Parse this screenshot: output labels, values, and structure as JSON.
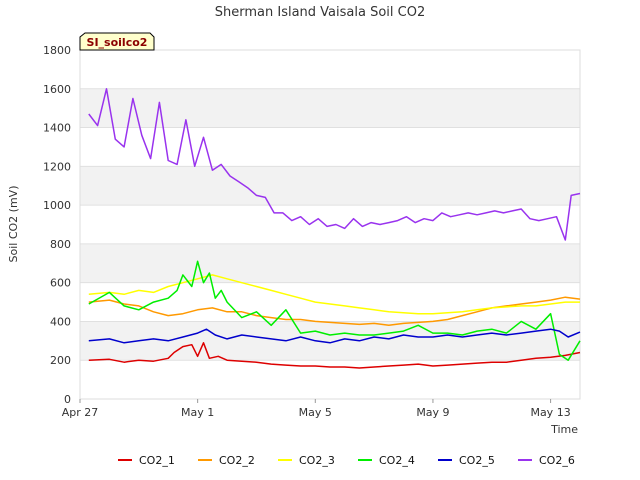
{
  "chart_data": {
    "type": "line",
    "title": "Sherman Island Vaisala Soil CO2",
    "xlabel": "Time",
    "ylabel": "Soil CO2 (mV)",
    "tag": "SI_soilco2",
    "ylim": [
      0,
      1800
    ],
    "xlim": [
      0,
      17
    ],
    "yticks": [
      0,
      200,
      400,
      600,
      800,
      1000,
      1200,
      1400,
      1600,
      1800
    ],
    "xticks": [
      {
        "pos": 0,
        "label": "Apr 27"
      },
      {
        "pos": 4,
        "label": "May 1"
      },
      {
        "pos": 8,
        "label": "May 5"
      },
      {
        "pos": 12,
        "label": "May 9"
      },
      {
        "pos": 16,
        "label": "May 13"
      }
    ],
    "grid": "horizontal-bands",
    "legend_position": "bottom",
    "series": [
      {
        "name": "CO2_1",
        "color": "#dd0000",
        "x": [
          0.3,
          1,
          1.5,
          2,
          2.5,
          3,
          3.2,
          3.5,
          3.8,
          4,
          4.2,
          4.4,
          4.7,
          5,
          5.5,
          6,
          6.5,
          7,
          7.5,
          8,
          8.5,
          9,
          9.5,
          10,
          10.5,
          11,
          11.5,
          12,
          12.5,
          13,
          13.5,
          14,
          14.5,
          15,
          15.5,
          16,
          16.5,
          17
        ],
        "y": [
          200,
          205,
          190,
          200,
          195,
          210,
          240,
          270,
          280,
          220,
          290,
          210,
          220,
          200,
          195,
          190,
          180,
          175,
          170,
          170,
          165,
          165,
          160,
          165,
          170,
          175,
          180,
          170,
          175,
          180,
          185,
          190,
          190,
          200,
          210,
          215,
          225,
          240
        ]
      },
      {
        "name": "CO2_2",
        "color": "#ff9900",
        "x": [
          0.3,
          1,
          1.5,
          2,
          2.5,
          3,
          3.5,
          4,
          4.5,
          5,
          5.5,
          6,
          6.5,
          7,
          7.5,
          8,
          8.5,
          9,
          9.5,
          10,
          10.5,
          11,
          11.5,
          12,
          12.5,
          13,
          13.5,
          14,
          14.5,
          15,
          15.5,
          16,
          16.5,
          17
        ],
        "y": [
          500,
          510,
          490,
          480,
          450,
          430,
          440,
          460,
          470,
          450,
          450,
          430,
          420,
          410,
          410,
          400,
          395,
          390,
          385,
          390,
          380,
          390,
          395,
          400,
          410,
          430,
          450,
          470,
          480,
          490,
          500,
          510,
          525,
          515
        ]
      },
      {
        "name": "CO2_3",
        "color": "#ffff00",
        "x": [
          0.3,
          1,
          1.5,
          2,
          2.5,
          3,
          3.5,
          4,
          4.5,
          5,
          5.5,
          6,
          6.5,
          7,
          7.5,
          8,
          8.5,
          9,
          9.5,
          10,
          10.5,
          11,
          11.5,
          12,
          12.5,
          13,
          13.5,
          14,
          14.5,
          15,
          15.5,
          16,
          16.5,
          17
        ],
        "y": [
          540,
          550,
          540,
          560,
          550,
          580,
          600,
          620,
          640,
          620,
          600,
          580,
          560,
          540,
          520,
          500,
          490,
          480,
          470,
          460,
          450,
          445,
          440,
          440,
          445,
          450,
          460,
          470,
          475,
          480,
          480,
          490,
          500,
          500
        ]
      },
      {
        "name": "CO2_4",
        "color": "#00ee00",
        "x": [
          0.3,
          1,
          1.5,
          2,
          2.5,
          3,
          3.3,
          3.5,
          3.8,
          4,
          4.2,
          4.4,
          4.6,
          4.8,
          5,
          5.5,
          6,
          6.5,
          7,
          7.5,
          8,
          8.5,
          9,
          9.5,
          10,
          10.5,
          11,
          11.5,
          12,
          12.5,
          13,
          13.5,
          14,
          14.5,
          15,
          15.5,
          16,
          16.3,
          16.6,
          17
        ],
        "y": [
          490,
          550,
          480,
          460,
          500,
          520,
          560,
          640,
          580,
          710,
          600,
          650,
          520,
          560,
          500,
          420,
          450,
          380,
          460,
          340,
          350,
          330,
          340,
          330,
          330,
          340,
          350,
          380,
          340,
          340,
          330,
          350,
          360,
          340,
          400,
          360,
          440,
          230,
          200,
          300
        ]
      },
      {
        "name": "CO2_5",
        "color": "#0000cc",
        "x": [
          0.3,
          1,
          1.5,
          2,
          2.5,
          3,
          3.5,
          4,
          4.3,
          4.6,
          5,
          5.5,
          6,
          6.5,
          7,
          7.5,
          8,
          8.5,
          9,
          9.5,
          10,
          10.5,
          11,
          11.5,
          12,
          12.5,
          13,
          13.5,
          14,
          14.5,
          15,
          15.5,
          16,
          16.3,
          16.6,
          17
        ],
        "y": [
          300,
          310,
          290,
          300,
          310,
          300,
          320,
          340,
          360,
          330,
          310,
          330,
          320,
          310,
          300,
          320,
          300,
          290,
          310,
          300,
          320,
          310,
          330,
          320,
          320,
          330,
          320,
          330,
          340,
          330,
          340,
          350,
          360,
          350,
          320,
          345
        ]
      },
      {
        "name": "CO2_6",
        "color": "#9933ee",
        "x": [
          0.3,
          0.6,
          0.9,
          1.2,
          1.5,
          1.8,
          2.1,
          2.4,
          2.7,
          3,
          3.3,
          3.6,
          3.9,
          4.2,
          4.5,
          4.8,
          5.1,
          5.4,
          5.7,
          6,
          6.3,
          6.6,
          6.9,
          7.2,
          7.5,
          7.8,
          8.1,
          8.4,
          8.7,
          9,
          9.3,
          9.6,
          9.9,
          10.2,
          10.5,
          10.8,
          11.1,
          11.4,
          11.7,
          12,
          12.3,
          12.6,
          12.9,
          13.2,
          13.5,
          13.8,
          14.1,
          14.4,
          14.7,
          15,
          15.3,
          15.6,
          15.9,
          16.2,
          16.5,
          16.7,
          17
        ],
        "y": [
          1470,
          1410,
          1600,
          1340,
          1300,
          1550,
          1360,
          1240,
          1530,
          1230,
          1210,
          1440,
          1200,
          1350,
          1180,
          1210,
          1150,
          1120,
          1090,
          1050,
          1040,
          960,
          960,
          920,
          940,
          900,
          930,
          890,
          900,
          880,
          930,
          890,
          910,
          900,
          910,
          920,
          940,
          910,
          930,
          920,
          960,
          940,
          950,
          960,
          950,
          960,
          970,
          960,
          970,
          980,
          930,
          920,
          930,
          940,
          820,
          1050,
          1060
        ]
      }
    ]
  }
}
